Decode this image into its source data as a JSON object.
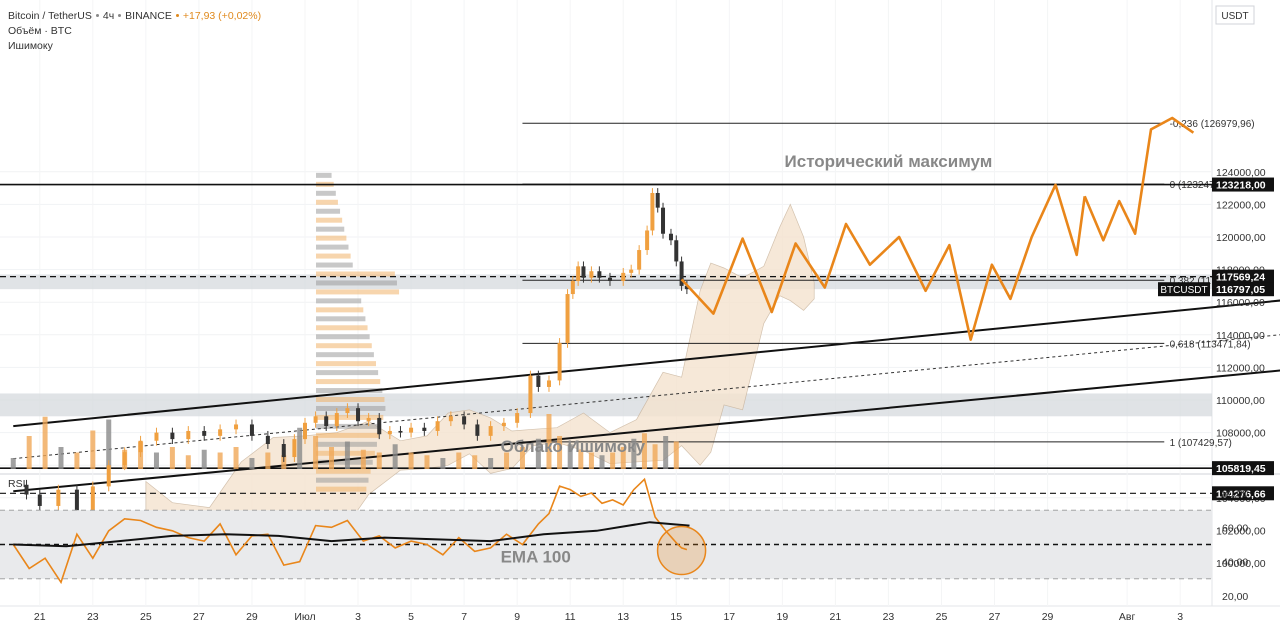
{
  "legend": {
    "symbol": "Bitcoin / TetherUS",
    "interval": "4ч",
    "exchange": "BINANCE",
    "change": "+17,93 (+0,02%)",
    "volume_label": "Объём · BTC",
    "ichimoku_label": "Ишимоку"
  },
  "currency_label": "USDT",
  "colors": {
    "up": "#f0a040",
    "down": "#333333",
    "accent": "#e9861a",
    "band": "#d6d9de",
    "cloud": "#f5e3cf"
  },
  "chart_data": [
    {
      "type": "line",
      "title": "Bitcoin / TetherUS · 4ч · BINANCE",
      "ylim": [
        98500,
        127300
      ],
      "y_ticks": [
        100000,
        102000,
        104000,
        106000,
        108000,
        110000,
        112000,
        114000,
        116000,
        118000,
        120000,
        122000,
        124000
      ],
      "y_tick_labels": [
        "100000,00",
        "102000,00",
        "104000,00",
        "106000,00",
        "108000,00",
        "110000,00",
        "112000,00",
        "114000,00",
        "116000,00",
        "118000,00",
        "120000,00",
        "122000,00",
        "124000,00"
      ],
      "x_ticks": [
        "21",
        "23",
        "25",
        "27",
        "29",
        "Июл",
        "3",
        "5",
        "7",
        "9",
        "11",
        "13",
        "15",
        "17",
        "19",
        "21",
        "23",
        "25",
        "27",
        "29",
        "Авг",
        "3"
      ],
      "x_tick_days": [
        -9,
        -7,
        -5,
        -3,
        -1,
        1,
        3,
        5,
        7,
        9,
        11,
        13,
        15,
        17,
        19,
        21,
        23,
        25,
        27,
        29,
        32,
        34
      ],
      "price_path": {
        "days": [
          -10,
          -9.5,
          -9,
          -8.3,
          -7.6,
          -7,
          -6.4,
          -5.8,
          -5.2,
          -4.6,
          -4,
          -3.4,
          -2.8,
          -2.2,
          -1.6,
          -1,
          -0.4,
          0.2,
          0.6,
          1,
          1.4,
          1.8,
          2.2,
          2.6,
          3,
          3.4,
          3.8,
          4.2,
          4.6,
          5,
          5.5,
          6,
          6.5,
          7,
          7.5,
          8,
          8.5,
          9,
          9.5,
          9.8,
          10.2,
          10.6,
          10.9,
          11.1,
          11.3,
          11.5,
          11.8,
          12.1,
          12.5,
          13,
          13.3,
          13.6,
          13.9,
          14.1,
          14.3,
          14.5,
          14.8,
          15,
          15.2,
          15.4
        ],
        "values": [
          104800,
          104200,
          103500,
          104500,
          103200,
          104700,
          106000,
          106800,
          107500,
          108000,
          107600,
          108100,
          107800,
          108200,
          108500,
          107800,
          107300,
          106500,
          107600,
          108600,
          109000,
          108400,
          109200,
          109500,
          108700,
          108900,
          107900,
          108100,
          108000,
          108300,
          108100,
          108700,
          109000,
          108500,
          107800,
          108400,
          108600,
          109200,
          111500,
          110800,
          111200,
          113500,
          116500,
          117300,
          118200,
          117500,
          117900,
          117500,
          117300,
          117800,
          118000,
          119200,
          120400,
          122700,
          121800,
          120200,
          119800,
          118500,
          117000,
          116800
        ]
      },
      "volume": {
        "days": [
          -10,
          -9.4,
          -8.8,
          -8.2,
          -7.6,
          -7,
          -6.4,
          -5.8,
          -5.2,
          -4.6,
          -4,
          -3.4,
          -2.8,
          -2.2,
          -1.6,
          -1,
          -0.4,
          0.2,
          0.8,
          1.4,
          2,
          2.6,
          3.2,
          3.8,
          4.4,
          5,
          5.6,
          6.2,
          6.8,
          7.4,
          8,
          8.6,
          9.2,
          9.8,
          10.2,
          10.6,
          11,
          11.4,
          11.8,
          12.2,
          12.6,
          13,
          13.4,
          13.8,
          14.2,
          14.6,
          15
        ],
        "values": [
          20,
          60,
          95,
          40,
          30,
          70,
          90,
          35,
          50,
          30,
          40,
          25,
          35,
          30,
          40,
          20,
          30,
          25,
          75,
          60,
          40,
          50,
          35,
          30,
          45,
          30,
          25,
          20,
          30,
          25,
          20,
          30,
          40,
          55,
          100,
          60,
          45,
          35,
          30,
          25,
          30,
          40,
          55,
          65,
          45,
          60,
          50
        ]
      },
      "horizontal_levels": [
        {
          "value": 123218.0,
          "label": "123218,00",
          "style": "solid"
        },
        {
          "value": 117569.24,
          "label": "117569,24",
          "style": "dashed"
        },
        {
          "value": 116797.05,
          "label": "116797,05",
          "style": "symbol"
        },
        {
          "value": 105819.45,
          "label": "105819,45",
          "style": "solid"
        },
        {
          "value": 104276.66,
          "label": "104276,66",
          "style": "dashed"
        }
      ],
      "symbol_tag": "BTCUSDT",
      "fibonacci": [
        {
          "ratio": "-0,236",
          "value": 126979.96,
          "label": "-0,236 (126979,96)"
        },
        {
          "ratio": "0",
          "value": 123247.04,
          "label": "0 (123247,04)"
        },
        {
          "ratio": "0,382",
          "value": 117347.77,
          "label": "0,382 (117347,77)"
        },
        {
          "ratio": "0,618",
          "value": 113471.84,
          "label": "0,618 (113471,84)"
        },
        {
          "ratio": "1",
          "value": 107429.57,
          "label": "1 (107429,57)"
        }
      ],
      "zones": [
        {
          "from": 109000,
          "to": 110400
        },
        {
          "from": 116800,
          "to": 117700
        },
        {
          "from": 102200,
          "to": 103200
        }
      ],
      "channel": {
        "upper": {
          "from": [
            -10,
            108400
          ],
          "to": [
            39,
            116300
          ]
        },
        "lower": {
          "from": [
            -10,
            104400
          ],
          "to": [
            39,
            112000
          ]
        },
        "mid": {
          "from": [
            -10,
            106400
          ],
          "to": [
            39,
            114200
          ]
        }
      },
      "projection": {
        "days": [
          15.2,
          16.4,
          17.5,
          18.6,
          19.5,
          20.6,
          21.4,
          22.3,
          23.4,
          24.4,
          25.3,
          26.1,
          26.9,
          27.6,
          28.4,
          29.3,
          30.1,
          30.4
        ],
        "values": [
          117400,
          115300,
          119900,
          115400,
          119600,
          116900,
          120800,
          118300,
          120000,
          116700,
          119500,
          113700,
          118300,
          116200,
          120000,
          123200,
          118900,
          122500
        ]
      },
      "projection_tail": {
        "days": [
          30.4,
          31.1,
          31.7,
          32.3,
          32.9,
          33.7,
          34.5
        ],
        "values": [
          122500,
          119800,
          122200,
          120200,
          126600,
          127300,
          126400
        ]
      },
      "annotations": [
        {
          "text": "Исторический максимум",
          "day": 23.0,
          "value": 124300
        },
        {
          "text": "Облако Ишимоку",
          "day": 11.1,
          "value": 106800
        }
      ]
    },
    {
      "type": "line",
      "title": "RSI",
      "ylim": [
        17,
        93
      ],
      "y_ticks": [
        20,
        40,
        60,
        80
      ],
      "y_tick_labels": [
        "20,00",
        "40,00",
        "60,00",
        "80,00"
      ],
      "levels": [
        70,
        50,
        30
      ],
      "rsi": {
        "days": [
          -10,
          -9.4,
          -8.8,
          -8.2,
          -7.6,
          -7,
          -6.4,
          -5.8,
          -5.2,
          -4.6,
          -4,
          -3.4,
          -2.8,
          -2.2,
          -1.6,
          -1,
          -0.4,
          0.2,
          0.8,
          1.4,
          2,
          2.6,
          3.2,
          3.8,
          4.4,
          5,
          5.6,
          6.2,
          6.8,
          7.4,
          8,
          8.6,
          9.2,
          9.8,
          10.2,
          10.6,
          11,
          11.4,
          11.8,
          12.2,
          12.6,
          13,
          13.4,
          13.8,
          14.2,
          14.6,
          15,
          15.2,
          15.4
        ],
        "values": [
          50,
          36,
          42,
          28,
          56,
          42,
          58,
          65,
          64,
          60,
          58,
          54,
          52,
          62,
          44,
          55,
          56,
          38,
          40,
          61,
          60,
          64,
          52,
          55,
          48,
          52,
          50,
          44,
          54,
          46,
          48,
          56,
          50,
          62,
          68,
          84,
          82,
          78,
          80,
          74,
          76,
          73,
          82,
          88,
          66,
          58,
          51,
          48,
          47
        ]
      },
      "ema_label": "EMA 100",
      "ema": {
        "days": [
          -10,
          -8,
          -6,
          -4,
          -2,
          0,
          2,
          4,
          6,
          8,
          10,
          12,
          14,
          15.5
        ],
        "values": [
          50,
          49,
          52,
          55,
          56,
          55,
          52,
          54,
          53,
          52,
          56,
          58,
          63,
          61
        ]
      }
    }
  ]
}
